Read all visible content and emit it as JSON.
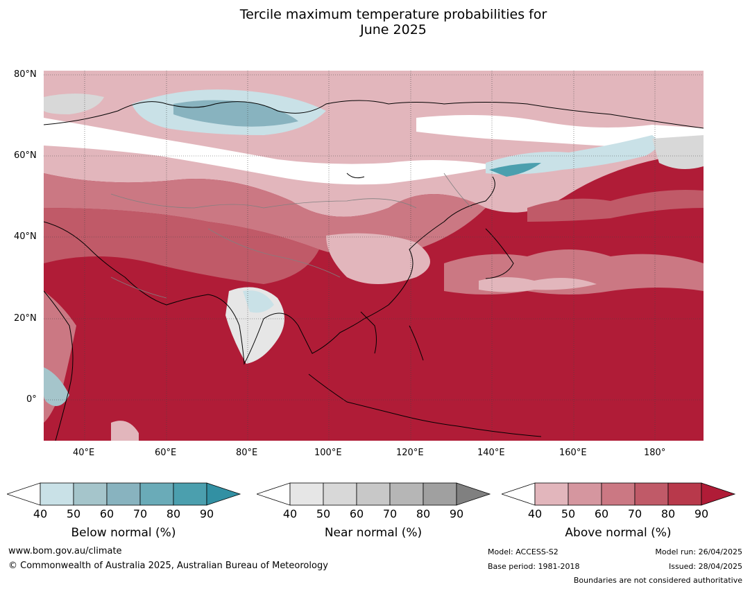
{
  "title": {
    "line1": "Tercile maximum temperature probabilities for",
    "line2": "June 2025"
  },
  "map": {
    "lat_labels": [
      "80°N",
      "60°N",
      "40°N",
      "20°N",
      "0°"
    ],
    "lon_labels": [
      "40°E",
      "60°E",
      "80°E",
      "100°E",
      "120°E",
      "140°E",
      "160°E",
      "180°"
    ]
  },
  "colorbars": [
    {
      "title": "Below normal (%)",
      "ticks": [
        "40",
        "50",
        "60",
        "70",
        "80",
        "90"
      ],
      "colors": [
        "#c9e1e7",
        "#a5c5cb",
        "#88b3bf",
        "#6aabb8",
        "#4b9fae",
        "#3290a3"
      ]
    },
    {
      "title": "Near normal (%)",
      "ticks": [
        "40",
        "50",
        "60",
        "70",
        "80",
        "90"
      ],
      "colors": [
        "#e6e6e6",
        "#d8d8d8",
        "#c8c8c8",
        "#b6b6b6",
        "#a0a0a0",
        "#808080"
      ]
    },
    {
      "title": "Above normal (%)",
      "ticks": [
        "40",
        "50",
        "60",
        "70",
        "80",
        "90"
      ],
      "colors": [
        "#e2b6bc",
        "#d5969f",
        "#cb7883",
        "#c05a68",
        "#b8394b",
        "#b01c37"
      ]
    }
  ],
  "footer": {
    "website": "www.bom.gov.au/climate",
    "copyright": "© Commonwealth of Australia 2025, Australian Bureau of Meteorology",
    "model": "Model: ACCESS-S2",
    "base_period": "Base period: 1981-2018",
    "model_run": "Model run: 26/04/2025",
    "issued": "Issued: 28/04/2025",
    "disclaimer": "Boundaries are not considered authoritative"
  }
}
